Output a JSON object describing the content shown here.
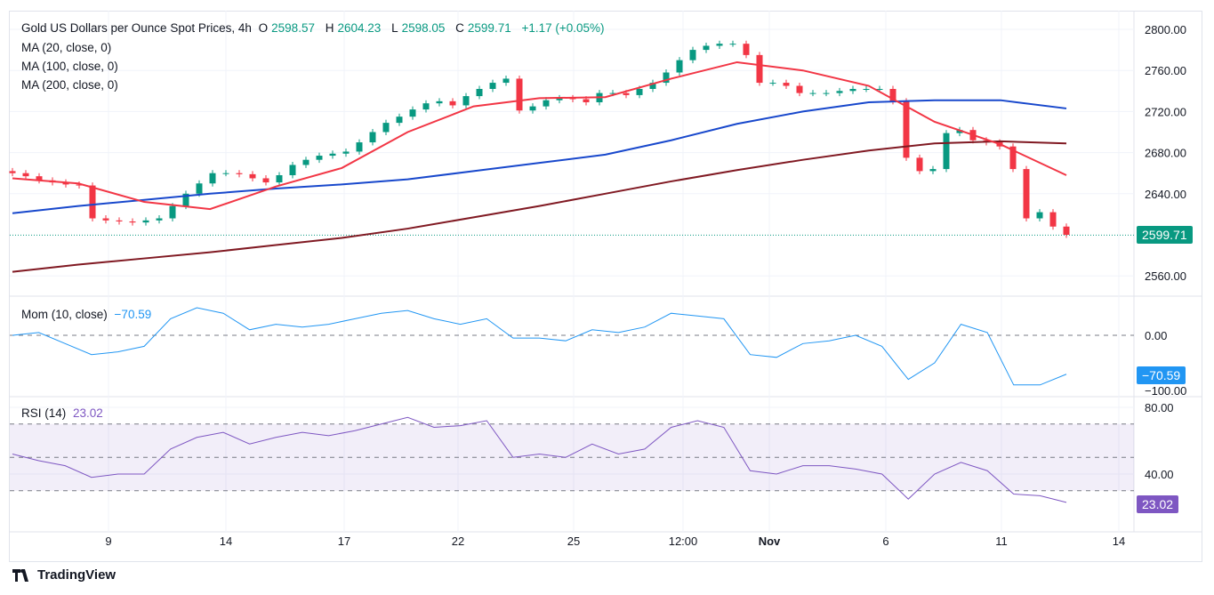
{
  "header": {
    "symbol": "Gold US Dollars per Ounce Spot Prices, 4h",
    "open_label": "O",
    "open": "2598.57",
    "high_label": "H",
    "high": "2604.23",
    "low_label": "L",
    "low": "2598.05",
    "close_label": "C",
    "close": "2599.71",
    "change": "+1.17 (+0.05%)"
  },
  "indicators": {
    "ma20": "MA (20, close, 0)",
    "ma100": "MA (100, close, 0)",
    "ma200": "MA (200, close, 0)",
    "mom": "Mom (10, close)",
    "mom_value": "−70.59",
    "rsi": "RSI (14)",
    "rsi_value": "23.02"
  },
  "badges": {
    "price": "2599.71",
    "mom": "−70.59",
    "rsi": "23.02"
  },
  "colors": {
    "up": "#089981",
    "down": "#f23645",
    "ma20": "#f23645",
    "ma100": "#1848cc",
    "ma200": "#801922",
    "mom": "#2196f3",
    "rsi": "#7e57c2"
  },
  "brand": "TradingView",
  "chart_data": [
    {
      "type": "candlestick",
      "title": "Gold US Dollars per Ounce Spot Prices, 4h",
      "y_ticks": [
        "2800.00",
        "2760.00",
        "2720.00",
        "2680.00",
        "2640.00",
        "2560.00"
      ],
      "ylim": [
        2560,
        2800
      ],
      "x_ticks": [
        "9",
        "14",
        "17",
        "22",
        "25",
        "12:00",
        "Nov",
        "6",
        "11",
        "14"
      ],
      "closes": [
        2660,
        2657,
        2653,
        2651,
        2649,
        2648,
        2616,
        2614,
        2613,
        2612,
        2614,
        2616,
        2628,
        2640,
        2650,
        2660,
        2660,
        2659,
        2655,
        2651,
        2658,
        2668,
        2673,
        2677,
        2679,
        2681,
        2690,
        2700,
        2709,
        2715,
        2722,
        2728,
        2730,
        2726,
        2735,
        2742,
        2748,
        2752,
        2721,
        2725,
        2731,
        2733,
        2732,
        2729,
        2738,
        2738,
        2736,
        2742,
        2748,
        2758,
        2770,
        2780,
        2784,
        2786,
        2786,
        2775,
        2748,
        2748,
        2745,
        2738,
        2738,
        2738,
        2740,
        2742,
        2742,
        2742,
        2730,
        2675,
        2662,
        2664,
        2699,
        2702,
        2692,
        2690,
        2686,
        2664,
        2616,
        2622,
        2608,
        2600
      ],
      "series": [
        {
          "name": "MA (20, close, 0)",
          "values": [
            2655,
            2650,
            2632,
            2625,
            2647,
            2665,
            2700,
            2725,
            2733,
            2734,
            2752,
            2768,
            2760,
            2745,
            2710,
            2688,
            2658
          ]
        },
        {
          "name": "MA (100, close, 0)",
          "values": [
            2621,
            2628,
            2634,
            2640,
            2645,
            2649,
            2654,
            2662,
            2670,
            2678,
            2692,
            2708,
            2720,
            2729,
            2731,
            2731,
            2723
          ]
        },
        {
          "name": "MA (200, close, 0)",
          "values": [
            2564,
            2571,
            2577,
            2583,
            2590,
            2597,
            2606,
            2617,
            2628,
            2640,
            2652,
            2663,
            2673,
            2682,
            2689,
            2691,
            2689
          ]
        }
      ]
    },
    {
      "type": "line",
      "title": "Mom (10, close)",
      "y_ticks": [
        "0.00",
        "−100.00"
      ],
      "values": [
        0,
        5,
        -15,
        -35,
        -30,
        -20,
        30,
        50,
        40,
        10,
        20,
        15,
        20,
        30,
        40,
        45,
        30,
        20,
        30,
        -5,
        -5,
        -10,
        10,
        5,
        15,
        40,
        35,
        30,
        -35,
        -40,
        -15,
        -10,
        0,
        -20,
        -80,
        -50,
        20,
        5,
        -90,
        -90,
        -70.59
      ]
    },
    {
      "type": "line",
      "title": "RSI (14)",
      "y_ticks": [
        "80.00",
        "40.00"
      ],
      "bands": [
        70,
        50,
        30
      ],
      "values": [
        52,
        48,
        45,
        38,
        40,
        40,
        55,
        62,
        65,
        58,
        62,
        65,
        63,
        66,
        70,
        74,
        68,
        69,
        72,
        50,
        52,
        50,
        58,
        52,
        55,
        68,
        72,
        68,
        42,
        40,
        45,
        45,
        43,
        40,
        25,
        40,
        47,
        42,
        28,
        27,
        23.02
      ]
    }
  ]
}
